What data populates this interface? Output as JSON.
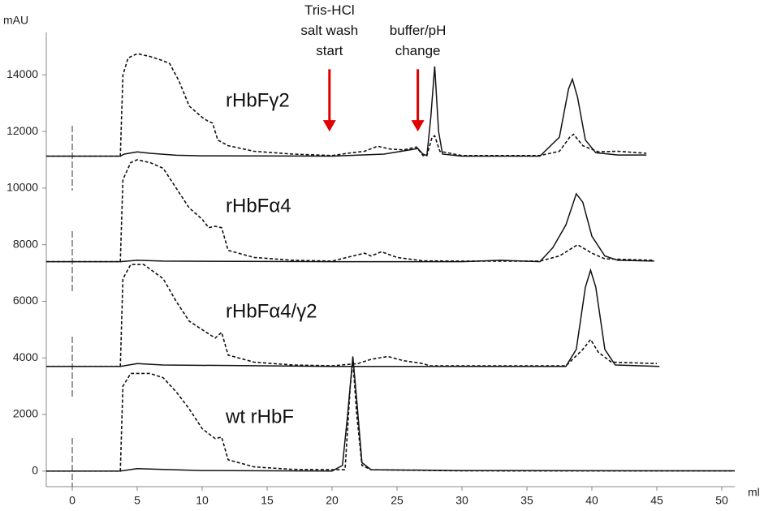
{
  "chart_data": {
    "type": "line",
    "y_label": "mAU",
    "x_label": "ml",
    "xlim": [
      -2,
      51
    ],
    "ylim": [
      -550,
      15500
    ],
    "xticks": [
      0,
      5,
      10,
      15,
      20,
      25,
      30,
      35,
      40,
      45,
      50
    ],
    "yticks": [
      0,
      2000,
      4000,
      6000,
      8000,
      10000,
      12000,
      14000
    ],
    "annotations": [
      {
        "text": [
          "Tris-HCl",
          "salt wash",
          "start"
        ],
        "x": 19.8,
        "y_start": 14200,
        "y_end": 12000,
        "color": "#e00000"
      },
      {
        "text": [
          "buffer/pH",
          "change"
        ],
        "x": 26.6,
        "y_start": 14200,
        "y_end": 12000,
        "color": "#e00000"
      }
    ],
    "series": [
      {
        "name": "rHbFγ2",
        "color": "#111111",
        "lines": [
          {
            "dash": false,
            "x": [
              -2,
              3.7,
              4,
              5,
              6,
              8,
              10,
              20,
              24,
              26,
              26.6,
              27,
              27.3,
              27.6,
              27.9,
              28.2,
              28.5,
              30,
              36,
              37.5,
              38.2,
              38.5,
              38.9,
              39.5,
              40.3,
              42,
              44.2
            ],
            "values": [
              11130,
              11130,
              11200,
              11280,
              11230,
              11160,
              11140,
              11130,
              11200,
              11350,
              11400,
              11200,
              11150,
              12500,
              14300,
              12000,
              11200,
              11130,
              11130,
              11800,
              13500,
              13850,
              13200,
              11700,
              11250,
              11170,
              11170
            ]
          },
          {
            "dash": true,
            "x": [
              -2,
              3.7,
              3.9,
              4.3,
              5,
              6,
              7,
              7.5,
              8.2,
              9,
              10,
              10.5,
              10.8,
              11.2,
              12,
              14,
              17,
              20,
              21.5,
              22.5,
              23.5,
              24.5,
              25.5,
              26.5,
              27,
              27.3,
              27.7,
              27.9,
              28.3,
              30,
              36,
              37.5,
              38.3,
              38.6,
              39.3,
              40.5,
              42,
              44.2
            ],
            "values": [
              11130,
              11130,
              14000,
              14600,
              14750,
              14650,
              14500,
              14400,
              13800,
              12900,
              12500,
              12350,
              12300,
              11700,
              11500,
              11300,
              11200,
              11150,
              11250,
              11300,
              11480,
              11380,
              11350,
              11450,
              11150,
              11150,
              11800,
              11850,
              11300,
              11150,
              11150,
              11300,
              11800,
              11900,
              11500,
              11280,
              11300,
              11230
            ]
          }
        ]
      },
      {
        "name": "rHbFα4",
        "color": "#111111",
        "lines": [
          {
            "dash": false,
            "x": [
              -2,
              3.7,
              5,
              7,
              20,
              30,
              33,
              36,
              37,
              38,
              38.8,
              39.3,
              40,
              41,
              42,
              44.8
            ],
            "values": [
              7400,
              7400,
              7450,
              7420,
              7400,
              7400,
              7450,
              7400,
              7900,
              8700,
              9800,
              9500,
              8300,
              7600,
              7450,
              7420
            ]
          },
          {
            "dash": true,
            "x": [
              -2,
              3.7,
              3.9,
              4.5,
              5,
              6,
              7,
              8,
              9,
              10,
              10.5,
              11,
              11.5,
              12,
              14,
              17,
              20,
              22.5,
              23,
              23.8,
              25,
              27,
              30,
              36,
              37.5,
              38.9,
              40,
              41,
              44.8
            ],
            "values": [
              7400,
              7400,
              10300,
              10900,
              11000,
              10900,
              10700,
              10000,
              9300,
              8900,
              8600,
              8650,
              8600,
              7800,
              7550,
              7450,
              7420,
              7700,
              7600,
              7750,
              7550,
              7430,
              7420,
              7420,
              7600,
              8000,
              7700,
              7500,
              7450
            ]
          }
        ]
      },
      {
        "name": "rHbFα4/γ2",
        "color": "#111111",
        "lines": [
          {
            "dash": false,
            "x": [
              -2,
              3.7,
              5,
              7,
              20,
              38,
              38.8,
              39.5,
              39.9,
              40.3,
              41,
              41.8,
              45.2
            ],
            "values": [
              3700,
              3700,
              3800,
              3750,
              3700,
              3700,
              4300,
              6500,
              7100,
              6500,
              4300,
              3750,
              3700
            ]
          },
          {
            "dash": true,
            "x": [
              -2,
              3.7,
              3.9,
              4.5,
              5.5,
              7,
              8,
              9,
              10,
              11,
              11.5,
              12,
              14,
              17,
              20,
              22,
              23,
              24.3,
              25.5,
              27,
              27.5,
              30,
              38,
              39.3,
              39.9,
              40.5,
              41.5,
              45
            ],
            "values": [
              3700,
              3700,
              6800,
              7300,
              7300,
              6800,
              6000,
              5300,
              5000,
              4700,
              4900,
              4100,
              3850,
              3750,
              3720,
              3800,
              3950,
              4050,
              3900,
              3800,
              3720,
              3720,
              3720,
              4300,
              4650,
              4200,
              3850,
              3800
            ]
          }
        ]
      },
      {
        "name": "wt rHbF",
        "color": "#111111",
        "lines": [
          {
            "dash": false,
            "x": [
              -2,
              3.7,
              5,
              7,
              10,
              20,
              20.8,
              21.2,
              21.6,
              21.9,
              22.3,
              23,
              30,
              51
            ],
            "values": [
              0,
              0,
              90,
              60,
              20,
              0,
              200,
              2000,
              4050,
              2500,
              300,
              50,
              20,
              10
            ]
          },
          {
            "dash": true,
            "x": [
              -2,
              3.7,
              3.9,
              4.5,
              6,
              7,
              8,
              9,
              10,
              11,
              11.5,
              12,
              14,
              17,
              21,
              21.4,
              21.6,
              21.9,
              22.3,
              23,
              30,
              51
            ],
            "values": [
              0,
              0,
              3000,
              3450,
              3450,
              3300,
              2800,
              2200,
              1500,
              1150,
              1200,
              400,
              150,
              60,
              50,
              3000,
              3900,
              2000,
              200,
              50,
              10,
              5
            ]
          }
        ]
      }
    ]
  }
}
